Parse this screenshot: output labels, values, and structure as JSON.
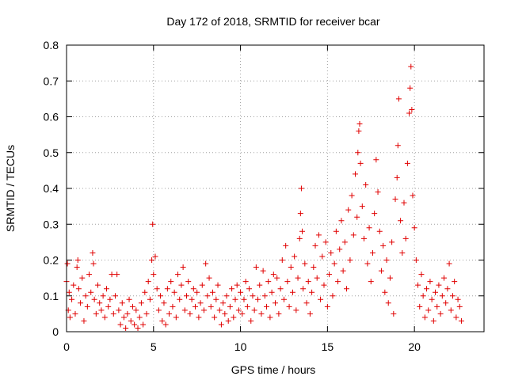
{
  "chart_data": {
    "type": "scatter",
    "title": "Day 172 of 2018, SRMTID for receiver bcar",
    "xlabel": "GPS time / hours",
    "ylabel": "SRMTID / TECUs",
    "xlim": [
      0,
      24
    ],
    "ylim": [
      0,
      0.8
    ],
    "xticks": [
      0,
      5,
      10,
      15,
      20
    ],
    "yticks": [
      0,
      0.1,
      0.2,
      0.3,
      0.4,
      0.5,
      0.6,
      0.7,
      0.8
    ],
    "xtick_labels": [
      "0",
      "5",
      "10",
      "15",
      "20"
    ],
    "ytick_labels": [
      "0",
      "0.1",
      "0.2",
      "0.3",
      "0.4",
      "0.5",
      "0.6",
      "0.7",
      "0.8"
    ],
    "grid": true,
    "marker": "+",
    "series": [
      {
        "name": "SRMTID",
        "color": "#e00000",
        "points": [
          [
            0.0,
            0.14
          ],
          [
            0.05,
            0.19
          ],
          [
            0.1,
            0.06
          ],
          [
            0.15,
            0.11
          ],
          [
            0.2,
            0.04
          ],
          [
            0.3,
            0.09
          ],
          [
            0.4,
            0.13
          ],
          [
            0.5,
            0.05
          ],
          [
            0.6,
            0.18
          ],
          [
            0.65,
            0.2
          ],
          [
            0.7,
            0.12
          ],
          [
            0.8,
            0.08
          ],
          [
            0.9,
            0.15
          ],
          [
            1.0,
            0.03
          ],
          [
            1.1,
            0.1
          ],
          [
            1.2,
            0.07
          ],
          [
            1.3,
            0.16
          ],
          [
            1.4,
            0.11
          ],
          [
            1.5,
            0.22
          ],
          [
            1.55,
            0.19
          ],
          [
            1.6,
            0.09
          ],
          [
            1.7,
            0.05
          ],
          [
            1.8,
            0.13
          ],
          [
            1.9,
            0.08
          ],
          [
            2.0,
            0.06
          ],
          [
            2.1,
            0.1
          ],
          [
            2.2,
            0.04
          ],
          [
            2.3,
            0.12
          ],
          [
            2.4,
            0.07
          ],
          [
            2.5,
            0.09
          ],
          [
            2.6,
            0.16
          ],
          [
            2.7,
            0.05
          ],
          [
            2.8,
            0.1
          ],
          [
            2.9,
            0.16
          ],
          [
            3.0,
            0.06
          ],
          [
            3.1,
            0.02
          ],
          [
            3.2,
            0.08
          ],
          [
            3.3,
            0.04
          ],
          [
            3.4,
            0.01
          ],
          [
            3.5,
            0.05
          ],
          [
            3.6,
            0.09
          ],
          [
            3.7,
            0.03
          ],
          [
            3.8,
            0.07
          ],
          [
            3.9,
            0.02
          ],
          [
            4.0,
            0.06
          ],
          [
            4.1,
            0.01
          ],
          [
            4.2,
            0.04
          ],
          [
            4.3,
            0.08
          ],
          [
            4.4,
            0.02
          ],
          [
            4.5,
            0.11
          ],
          [
            4.6,
            0.05
          ],
          [
            4.7,
            0.14
          ],
          [
            4.8,
            0.09
          ],
          [
            4.9,
            0.2
          ],
          [
            4.95,
            0.3
          ],
          [
            5.0,
            0.16
          ],
          [
            5.1,
            0.21
          ],
          [
            5.2,
            0.12
          ],
          [
            5.3,
            0.06
          ],
          [
            5.4,
            0.1
          ],
          [
            5.5,
            0.03
          ],
          [
            5.6,
            0.08
          ],
          [
            5.7,
            0.02
          ],
          [
            5.8,
            0.12
          ],
          [
            5.9,
            0.05
          ],
          [
            6.0,
            0.14
          ],
          [
            6.1,
            0.07
          ],
          [
            6.2,
            0.11
          ],
          [
            6.3,
            0.04
          ],
          [
            6.4,
            0.16
          ],
          [
            6.5,
            0.09
          ],
          [
            6.6,
            0.13
          ],
          [
            6.7,
            0.18
          ],
          [
            6.8,
            0.06
          ],
          [
            6.9,
            0.1
          ],
          [
            7.0,
            0.14
          ],
          [
            7.1,
            0.05
          ],
          [
            7.2,
            0.09
          ],
          [
            7.3,
            0.12
          ],
          [
            7.4,
            0.07
          ],
          [
            7.5,
            0.11
          ],
          [
            7.6,
            0.04
          ],
          [
            7.7,
            0.08
          ],
          [
            7.8,
            0.13
          ],
          [
            7.9,
            0.06
          ],
          [
            8.0,
            0.19
          ],
          [
            8.1,
            0.1
          ],
          [
            8.2,
            0.15
          ],
          [
            8.3,
            0.07
          ],
          [
            8.4,
            0.11
          ],
          [
            8.5,
            0.04
          ],
          [
            8.6,
            0.09
          ],
          [
            8.7,
            0.13
          ],
          [
            8.8,
            0.06
          ],
          [
            8.9,
            0.02
          ],
          [
            9.0,
            0.08
          ],
          [
            9.1,
            0.05
          ],
          [
            9.2,
            0.1
          ],
          [
            9.3,
            0.03
          ],
          [
            9.4,
            0.07
          ],
          [
            9.5,
            0.12
          ],
          [
            9.6,
            0.04
          ],
          [
            9.7,
            0.09
          ],
          [
            9.8,
            0.13
          ],
          [
            9.9,
            0.06
          ],
          [
            10.0,
            0.11
          ],
          [
            10.1,
            0.05
          ],
          [
            10.2,
            0.09
          ],
          [
            10.3,
            0.14
          ],
          [
            10.4,
            0.07
          ],
          [
            10.5,
            0.12
          ],
          [
            10.6,
            0.03
          ],
          [
            10.7,
            0.1
          ],
          [
            10.8,
            0.06
          ],
          [
            10.9,
            0.18
          ],
          [
            11.0,
            0.09
          ],
          [
            11.1,
            0.13
          ],
          [
            11.2,
            0.05
          ],
          [
            11.3,
            0.17
          ],
          [
            11.4,
            0.1
          ],
          [
            11.5,
            0.07
          ],
          [
            11.6,
            0.14
          ],
          [
            11.7,
            0.04
          ],
          [
            11.8,
            0.11
          ],
          [
            11.9,
            0.16
          ],
          [
            12.0,
            0.08
          ],
          [
            12.1,
            0.15
          ],
          [
            12.2,
            0.05
          ],
          [
            12.3,
            0.12
          ],
          [
            12.4,
            0.2
          ],
          [
            12.5,
            0.09
          ],
          [
            12.6,
            0.24
          ],
          [
            12.7,
            0.14
          ],
          [
            12.8,
            0.07
          ],
          [
            12.9,
            0.18
          ],
          [
            13.0,
            0.11
          ],
          [
            13.1,
            0.21
          ],
          [
            13.2,
            0.06
          ],
          [
            13.3,
            0.15
          ],
          [
            13.4,
            0.26
          ],
          [
            13.45,
            0.33
          ],
          [
            13.5,
            0.4
          ],
          [
            13.55,
            0.28
          ],
          [
            13.6,
            0.12
          ],
          [
            13.7,
            0.19
          ],
          [
            13.8,
            0.08
          ],
          [
            13.9,
            0.14
          ],
          [
            14.0,
            0.05
          ],
          [
            14.1,
            0.11
          ],
          [
            14.2,
            0.18
          ],
          [
            14.3,
            0.24
          ],
          [
            14.4,
            0.15
          ],
          [
            14.5,
            0.27
          ],
          [
            14.6,
            0.09
          ],
          [
            14.7,
            0.21
          ],
          [
            14.8,
            0.13
          ],
          [
            14.9,
            0.25
          ],
          [
            15.0,
            0.07
          ],
          [
            15.1,
            0.16
          ],
          [
            15.2,
            0.22
          ],
          [
            15.3,
            0.1
          ],
          [
            15.4,
            0.19
          ],
          [
            15.5,
            0.28
          ],
          [
            15.6,
            0.14
          ],
          [
            15.7,
            0.23
          ],
          [
            15.8,
            0.31
          ],
          [
            15.9,
            0.17
          ],
          [
            16.0,
            0.25
          ],
          [
            16.1,
            0.12
          ],
          [
            16.2,
            0.34
          ],
          [
            16.3,
            0.2
          ],
          [
            16.4,
            0.38
          ],
          [
            16.5,
            0.27
          ],
          [
            16.6,
            0.44
          ],
          [
            16.7,
            0.32
          ],
          [
            16.75,
            0.5
          ],
          [
            16.8,
            0.56
          ],
          [
            16.85,
            0.58
          ],
          [
            16.9,
            0.47
          ],
          [
            17.0,
            0.35
          ],
          [
            17.1,
            0.26
          ],
          [
            17.2,
            0.41
          ],
          [
            17.3,
            0.19
          ],
          [
            17.4,
            0.29
          ],
          [
            17.5,
            0.14
          ],
          [
            17.6,
            0.22
          ],
          [
            17.7,
            0.33
          ],
          [
            17.8,
            0.48
          ],
          [
            17.9,
            0.39
          ],
          [
            18.0,
            0.28
          ],
          [
            18.1,
            0.17
          ],
          [
            18.2,
            0.24
          ],
          [
            18.3,
            0.11
          ],
          [
            18.4,
            0.2
          ],
          [
            18.5,
            0.08
          ],
          [
            18.6,
            0.15
          ],
          [
            18.7,
            0.25
          ],
          [
            18.8,
            0.05
          ],
          [
            18.9,
            0.37
          ],
          [
            19.0,
            0.43
          ],
          [
            19.05,
            0.52
          ],
          [
            19.1,
            0.65
          ],
          [
            19.2,
            0.31
          ],
          [
            19.3,
            0.22
          ],
          [
            19.4,
            0.36
          ],
          [
            19.5,
            0.26
          ],
          [
            19.6,
            0.47
          ],
          [
            19.7,
            0.61
          ],
          [
            19.75,
            0.68
          ],
          [
            19.8,
            0.74
          ],
          [
            19.85,
            0.62
          ],
          [
            19.9,
            0.38
          ],
          [
            20.0,
            0.29
          ],
          [
            20.1,
            0.2
          ],
          [
            20.2,
            0.13
          ],
          [
            20.3,
            0.07
          ],
          [
            20.4,
            0.16
          ],
          [
            20.5,
            0.1
          ],
          [
            20.6,
            0.04
          ],
          [
            20.7,
            0.12
          ],
          [
            20.8,
            0.06
          ],
          [
            20.9,
            0.14
          ],
          [
            21.0,
            0.09
          ],
          [
            21.1,
            0.03
          ],
          [
            21.2,
            0.11
          ],
          [
            21.3,
            0.07
          ],
          [
            21.4,
            0.13
          ],
          [
            21.5,
            0.05
          ],
          [
            21.6,
            0.1
          ],
          [
            21.7,
            0.15
          ],
          [
            21.8,
            0.08
          ],
          [
            21.9,
            0.12
          ],
          [
            22.0,
            0.19
          ],
          [
            22.1,
            0.06
          ],
          [
            22.2,
            0.1
          ],
          [
            22.3,
            0.14
          ],
          [
            22.4,
            0.04
          ],
          [
            22.5,
            0.09
          ],
          [
            22.6,
            0.07
          ],
          [
            22.7,
            0.03
          ]
        ]
      }
    ]
  }
}
